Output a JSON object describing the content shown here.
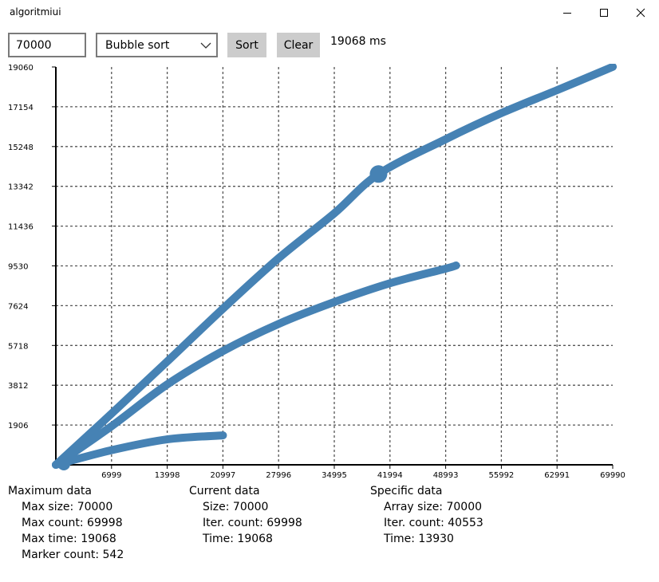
{
  "window": {
    "title": "algoritmiui",
    "controls": [
      "minimize-icon",
      "maximize-icon",
      "close-icon"
    ]
  },
  "toolbar": {
    "size_input_value": "70000",
    "algorithm_selected": "Bubble sort",
    "sort_label": "Sort",
    "clear_label": "Clear",
    "elapsed": "19068 ms"
  },
  "colors": {
    "series": "#4682b4",
    "button_bg": "#cccccc",
    "grid": "#555555"
  },
  "chart_data": {
    "type": "line",
    "title": "",
    "xlabel": "",
    "ylabel": "",
    "xlim": [
      0,
      69990
    ],
    "ylim": [
      0,
      19060
    ],
    "x_ticks": [
      "6999",
      "13998",
      "20997",
      "27996",
      "34995",
      "41994",
      "48993",
      "55992",
      "62991",
      "69990"
    ],
    "y_ticks": [
      "1906",
      "3812",
      "5718",
      "7624",
      "9530",
      "11436",
      "13342",
      "15248",
      "17154",
      "19060"
    ],
    "grid": true,
    "marker_point": [
      40553,
      13930
    ],
    "series": [
      {
        "values": [
          [
            0,
            0
          ],
          [
            7000,
            2450
          ],
          [
            14000,
            4950
          ],
          [
            21000,
            7480
          ],
          [
            28000,
            9900
          ],
          [
            35000,
            12050
          ],
          [
            40553,
            13930
          ],
          [
            49000,
            15600
          ],
          [
            56000,
            16850
          ],
          [
            63000,
            17950
          ],
          [
            69998,
            19068
          ]
        ]
      },
      {
        "values": [
          [
            0,
            0
          ],
          [
            7000,
            1850
          ],
          [
            14000,
            3850
          ],
          [
            21000,
            5450
          ],
          [
            28000,
            6750
          ],
          [
            35000,
            7800
          ],
          [
            42000,
            8700
          ],
          [
            49000,
            9400
          ],
          [
            50300,
            9550
          ]
        ]
      },
      {
        "values": [
          [
            0,
            0
          ],
          [
            7000,
            700
          ],
          [
            14000,
            1220
          ],
          [
            21000,
            1410
          ]
        ]
      }
    ]
  },
  "info": {
    "maximum": {
      "heading": "Maximum data",
      "rows": [
        "Max size: 70000",
        "Max count: 69998",
        "Max time: 19068",
        "Marker count: 542"
      ]
    },
    "current": {
      "heading": "Current data",
      "rows": [
        "Size: 70000",
        "Iter. count: 69998",
        "Time: 19068"
      ]
    },
    "specific": {
      "heading": "Specific data",
      "rows": [
        "Array size: 70000",
        "Iter. count: 40553",
        "Time: 13930"
      ]
    }
  }
}
